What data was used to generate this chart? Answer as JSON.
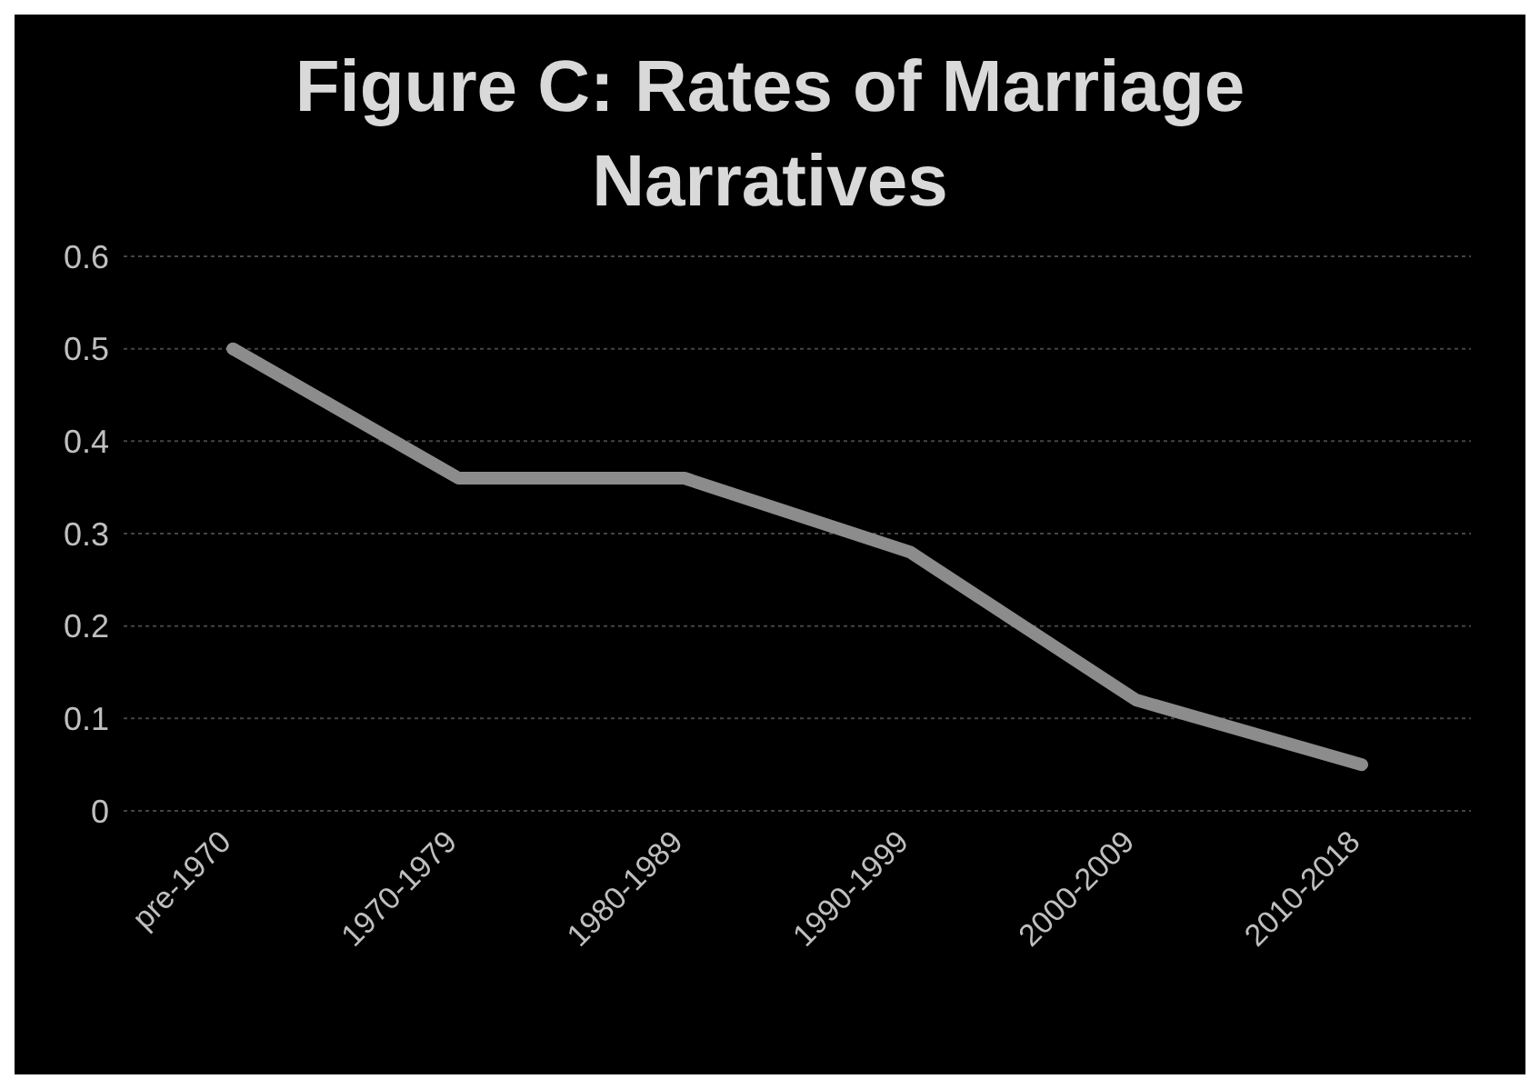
{
  "chart_data": {
    "type": "line",
    "title": "Figure C: Rates of Marriage Narratives",
    "categories": [
      "pre-1970",
      "1970-1979",
      "1980-1989",
      "1990-1999",
      "2000-2009",
      "2010-2018"
    ],
    "series": [
      {
        "color": "#8c8c8c",
        "values": [
          0.5,
          0.36,
          0.36,
          0.28,
          0.12,
          0.05
        ]
      }
    ],
    "ylim": [
      0,
      0.6
    ],
    "yticks": [
      0,
      0.1,
      0.2,
      0.3,
      0.4,
      0.5,
      0.6
    ],
    "grid": "y",
    "legend": false,
    "marker": "none"
  }
}
